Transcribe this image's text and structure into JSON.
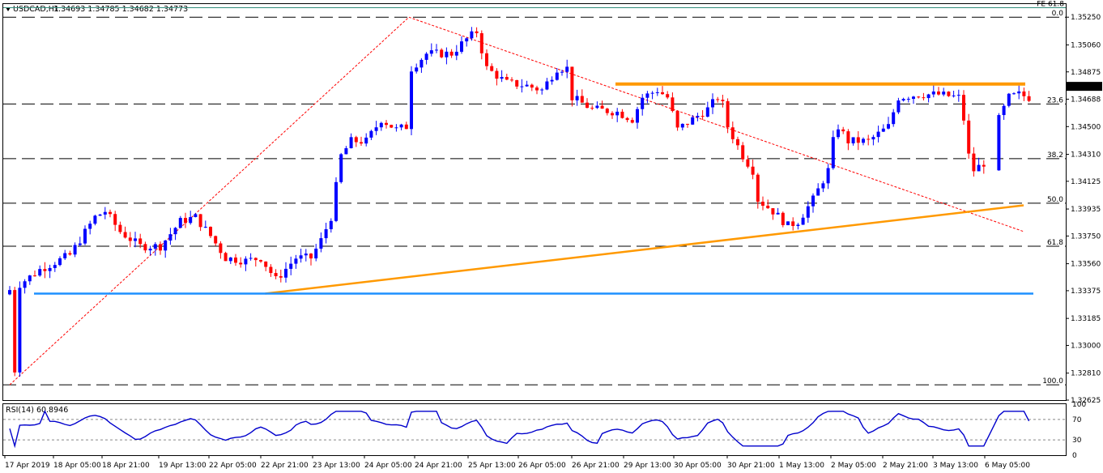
{
  "header": {
    "symbol": "USDCAD,H1",
    "ohlc": "1.34693 1.34785 1.34682 1.34773"
  },
  "rsi_header": "RSI(14) 60.8946",
  "colors": {
    "bull": "#0000ff",
    "bear": "#ff0000",
    "fib": "#000000",
    "orange": "#ff9900",
    "support": "#1e90ff",
    "fe_line": "#2e8b7a",
    "rsi": "#0000cc",
    "current_price_bg": "#000000"
  },
  "chart_data": [
    {
      "type": "candlestick",
      "title": "",
      "xlabel": "",
      "ylabel": "",
      "ylim": [
        1.32625,
        1.3534
      ],
      "y_ticks": [
        "1.35250",
        "1.35060",
        "1.34875",
        "1.34688",
        "1.34500",
        "1.34310",
        "1.34125",
        "1.33935",
        "1.33750",
        "1.33560",
        "1.33375",
        "1.33185",
        "1.33000",
        "1.32810",
        "1.32625"
      ],
      "current_price": "1.34773",
      "x_ticks": [
        "17 Apr 2019",
        "18 Apr 05:00",
        "18 Apr 21:00",
        "19 Apr 13:00",
        "22 Apr 05:00",
        "22 Apr 21:00",
        "23 Apr 13:00",
        "24 Apr 05:00",
        "24 Apr 21:00",
        "25 Apr 13:00",
        "26 Apr 05:00",
        "26 Apr 21:00",
        "29 Apr 13:00",
        "30 Apr 05:00",
        "30 Apr 21:00",
        "1 May 13:00",
        "2 May 05:00",
        "2 May 21:00",
        "3 May 13:00",
        "6 May 05:00"
      ],
      "fib_levels": [
        {
          "label": "0.0",
          "price": 1.3525
        },
        {
          "label": "23.6",
          "price": 1.34655
        },
        {
          "label": "38.2",
          "price": 1.3428
        },
        {
          "label": "50.0",
          "price": 1.33975
        },
        {
          "label": "61.8",
          "price": 1.3368
        },
        {
          "label": "100.0",
          "price": 1.3273
        }
      ],
      "fe_label": "FE 61.8",
      "fe_price": 1.35315,
      "resistance_price": 1.34792,
      "support_price": 1.33355,
      "anchor_points": [
        {
          "x": 0,
          "price": 1.3273
        },
        {
          "x": 79.5,
          "price": 1.3525
        },
        {
          "x": 202,
          "price": 1.3378
        }
      ],
      "trendline": [
        {
          "x": 52.5,
          "price": 1.33355
        },
        {
          "x": 207,
          "price": 1.3396
        }
      ],
      "waypoints": [
        [
          0,
          1.3338
        ],
        [
          1,
          1.3283
        ],
        [
          2,
          1.3342
        ],
        [
          6,
          1.3352
        ],
        [
          12,
          1.3362
        ],
        [
          17,
          1.3388
        ],
        [
          19,
          1.3392
        ],
        [
          22,
          1.3378
        ],
        [
          26,
          1.3368
        ],
        [
          30,
          1.3368
        ],
        [
          34,
          1.3385
        ],
        [
          37,
          1.3388
        ],
        [
          40,
          1.3375
        ],
        [
          43,
          1.336
        ],
        [
          47,
          1.3358
        ],
        [
          50,
          1.336
        ],
        [
          53,
          1.3345
        ],
        [
          57,
          1.336
        ],
        [
          60,
          1.336
        ],
        [
          62,
          1.3372
        ],
        [
          64,
          1.3388
        ],
        [
          66,
          1.343
        ],
        [
          68,
          1.344
        ],
        [
          71,
          1.344
        ],
        [
          74,
          1.3455
        ],
        [
          77,
          1.3448
        ],
        [
          79,
          1.345
        ],
        [
          80,
          1.349
        ],
        [
          83,
          1.35
        ],
        [
          88,
          1.35
        ],
        [
          91,
          1.351
        ],
        [
          93,
          1.3515
        ],
        [
          95,
          1.349
        ],
        [
          99,
          1.348
        ],
        [
          103,
          1.3478
        ],
        [
          106,
          1.3475
        ],
        [
          109,
          1.349
        ],
        [
          111,
          1.349
        ],
        [
          112,
          1.347
        ],
        [
          116,
          1.3462
        ],
        [
          121,
          1.346
        ],
        [
          124,
          1.3455
        ],
        [
          126,
          1.347
        ],
        [
          129,
          1.3475
        ],
        [
          131,
          1.347
        ],
        [
          133,
          1.3448
        ],
        [
          136,
          1.3455
        ],
        [
          139,
          1.3462
        ],
        [
          141,
          1.347
        ],
        [
          142,
          1.3465
        ],
        [
          143,
          1.345
        ],
        [
          146,
          1.343
        ],
        [
          148,
          1.342
        ],
        [
          149,
          1.34
        ],
        [
          152,
          1.3392
        ],
        [
          155,
          1.3382
        ],
        [
          157,
          1.3385
        ],
        [
          160,
          1.34
        ],
        [
          163,
          1.342
        ],
        [
          164,
          1.344
        ],
        [
          165,
          1.345
        ],
        [
          167,
          1.344
        ],
        [
          171,
          1.344
        ],
        [
          173,
          1.3445
        ],
        [
          175,
          1.345
        ],
        [
          177,
          1.347
        ],
        [
          181,
          1.3472
        ],
        [
          185,
          1.3472
        ],
        [
          189,
          1.347
        ],
        [
          190,
          1.3455
        ],
        [
          191,
          1.343
        ],
        [
          192,
          1.342
        ],
        [
          194,
          1.3425
        ],
        [
          196,
          1.342
        ],
        [
          197,
          1.3455
        ],
        [
          199,
          1.347
        ],
        [
          201,
          1.3472
        ],
        [
          203,
          1.347
        ]
      ],
      "gaps": [
        195,
        196
      ],
      "rsi": {
        "name": "RSI(14)",
        "value": "60.8946",
        "ylim": [
          0,
          100
        ],
        "levels": [
          30,
          70
        ],
        "ticks": [
          "100",
          "70",
          "30",
          "0"
        ]
      }
    }
  ]
}
